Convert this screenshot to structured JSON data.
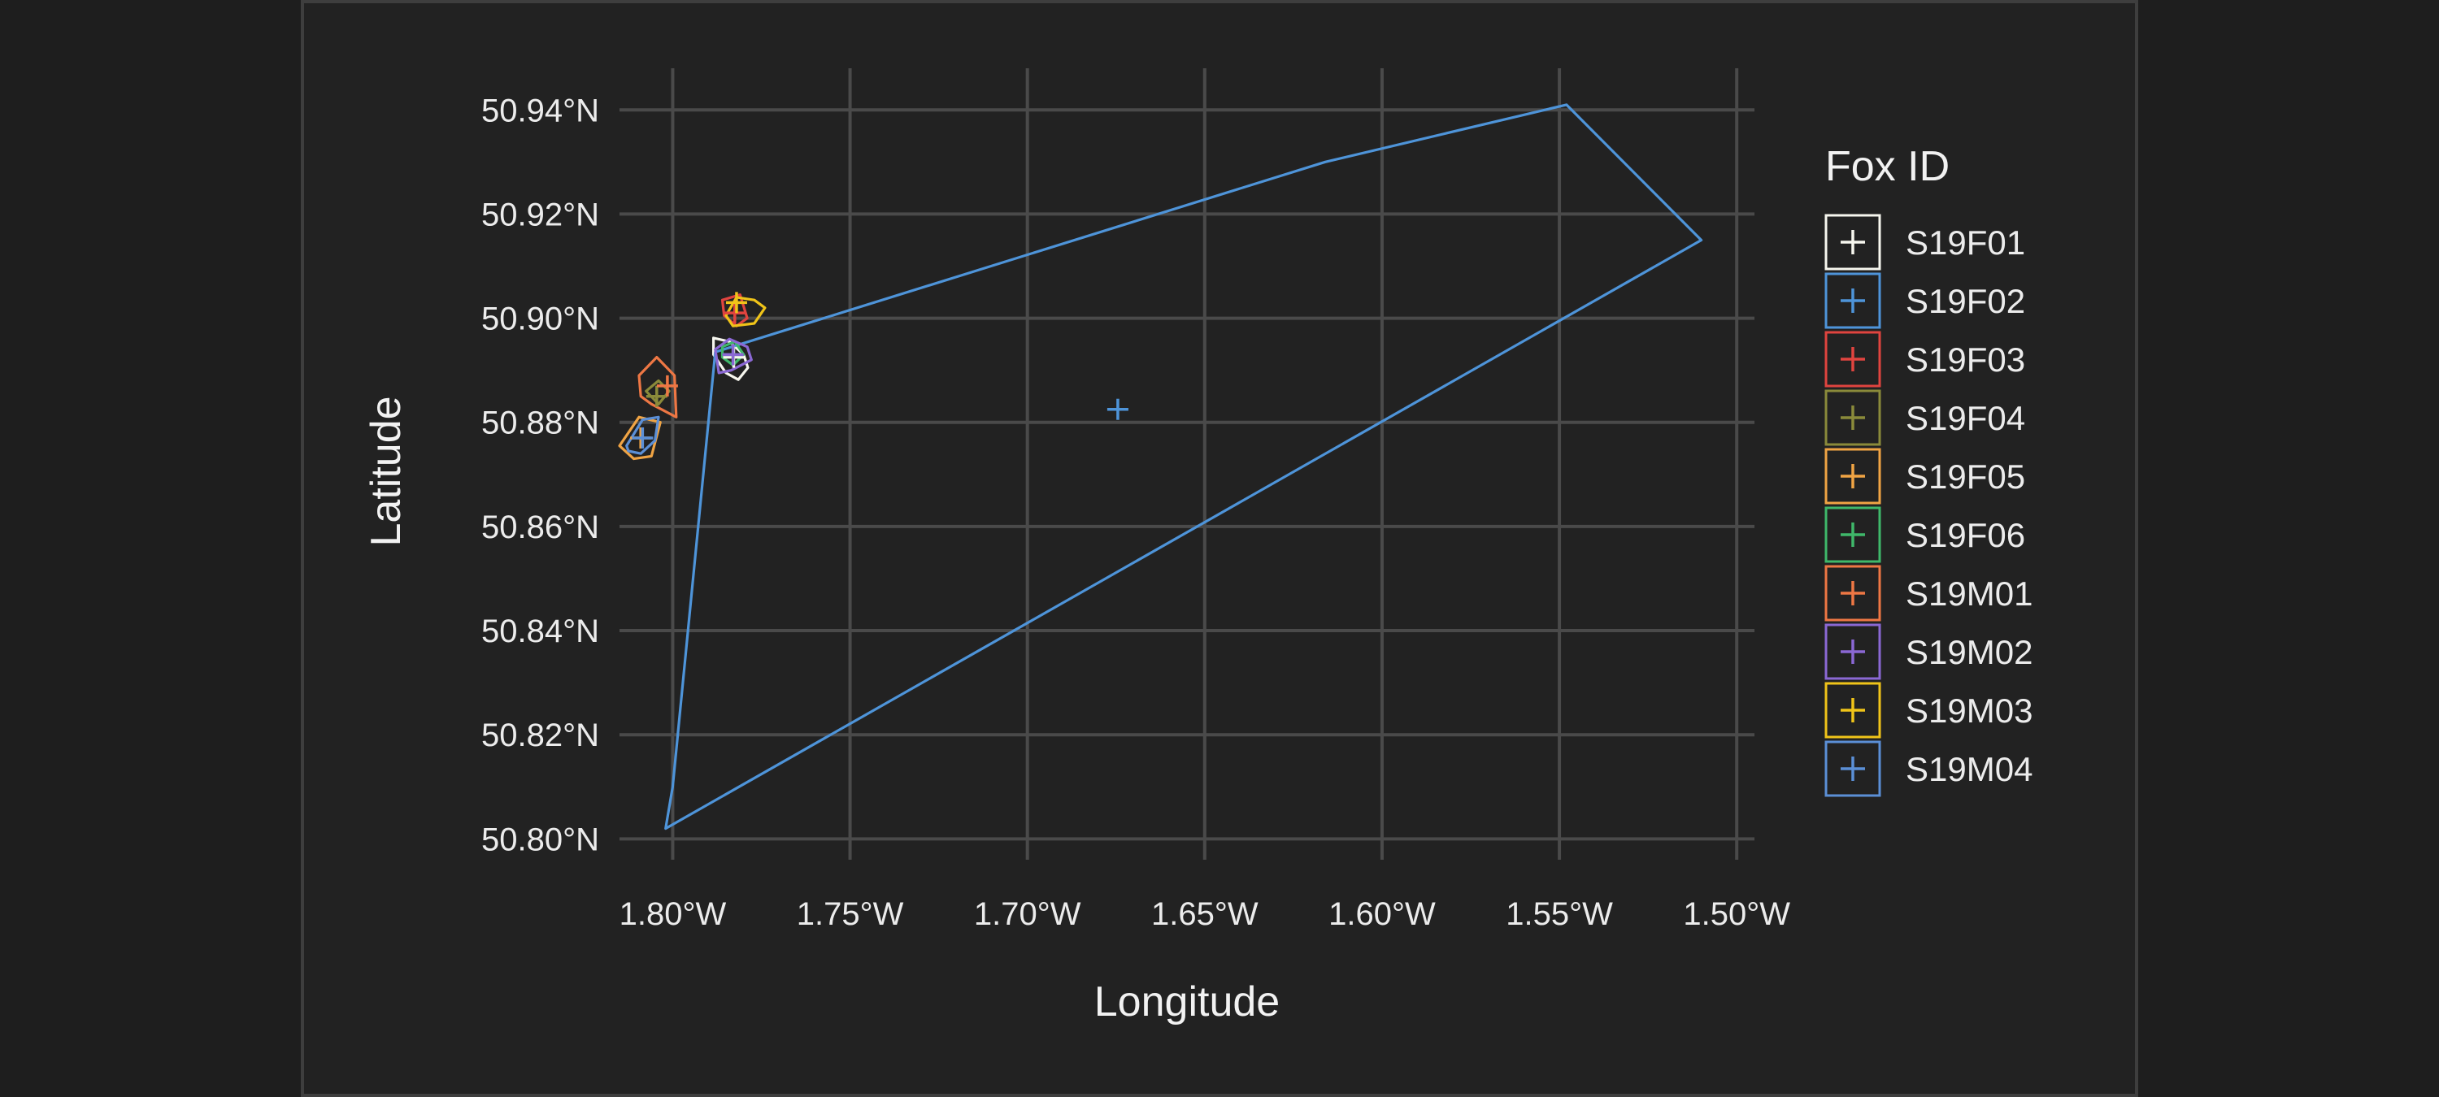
{
  "chart_data": {
    "type": "scatter",
    "title": "",
    "xlabel": "Longitude",
    "ylabel": "Latitude",
    "xlim": [
      -1.815,
      -1.495
    ],
    "ylim": [
      50.796,
      50.948
    ],
    "x_ticks": [
      -1.8,
      -1.75,
      -1.7,
      -1.65,
      -1.6,
      -1.55,
      -1.5
    ],
    "x_tick_labels": [
      "1.80°W",
      "1.75°W",
      "1.70°W",
      "1.65°W",
      "1.60°W",
      "1.55°W",
      "1.50°W"
    ],
    "y_ticks": [
      50.8,
      50.82,
      50.84,
      50.86,
      50.88,
      50.9,
      50.92,
      50.94
    ],
    "y_tick_labels": [
      "50.80°N",
      "50.82°N",
      "50.84°N",
      "50.86°N",
      "50.88°N",
      "50.90°N",
      "50.92°N",
      "50.94°N"
    ],
    "grid": true,
    "background": "#222222",
    "legend": {
      "title": "Fox ID",
      "placement": "right"
    },
    "series": [
      {
        "name": "S19F01",
        "color": "#f7f7ef",
        "centroid": [
          -1.7828,
          50.8925
        ],
        "polygon": [
          [
            -1.7885,
            50.8962
          ],
          [
            -1.784,
            50.8955
          ],
          [
            -1.78,
            50.893
          ],
          [
            -1.7788,
            50.8905
          ],
          [
            -1.7815,
            50.8882
          ],
          [
            -1.785,
            50.8895
          ],
          [
            -1.7885,
            50.893
          ]
        ]
      },
      {
        "name": "S19F02",
        "color": "#4e94d9",
        "centroid": [
          -1.6745,
          50.8825
        ],
        "polygon": [
          [
            -1.788,
            50.8935
          ],
          [
            -1.616,
            50.93
          ],
          [
            -1.548,
            50.941
          ],
          [
            -1.51,
            50.915
          ],
          [
            -1.802,
            50.802
          ],
          [
            -1.8,
            50.81
          ]
        ]
      },
      {
        "name": "S19F03",
        "color": "#e0443f",
        "centroid": [
          -1.7825,
          50.901
        ],
        "polygon": [
          [
            -1.786,
            50.9035
          ],
          [
            -1.781,
            50.9045
          ],
          [
            -1.779,
            50.9
          ],
          [
            -1.782,
            50.8985
          ],
          [
            -1.7855,
            50.9005
          ]
        ]
      },
      {
        "name": "S19F04",
        "color": "#8a8a3a",
        "centroid": [
          -1.8045,
          50.885
        ],
        "polygon": [
          [
            -1.8075,
            50.886
          ],
          [
            -1.804,
            50.888
          ],
          [
            -1.801,
            50.886
          ],
          [
            -1.804,
            50.8835
          ]
        ]
      },
      {
        "name": "S19F05",
        "color": "#f0a444",
        "centroid": [
          -1.809,
          50.877
        ],
        "polygon": [
          [
            -1.815,
            50.8755
          ],
          [
            -1.8095,
            50.881
          ],
          [
            -1.8035,
            50.88
          ],
          [
            -1.806,
            50.8735
          ],
          [
            -1.811,
            50.873
          ]
        ]
      },
      {
        "name": "S19F06",
        "color": "#3fb86a",
        "centroid": [
          -1.783,
          50.893
        ],
        "polygon": [
          [
            -1.786,
            50.8945
          ],
          [
            -1.7825,
            50.8955
          ],
          [
            -1.78,
            50.893
          ],
          [
            -1.783,
            50.891
          ],
          [
            -1.786,
            50.8925
          ]
        ]
      },
      {
        "name": "S19M01",
        "color": "#ee7744",
        "centroid": [
          -1.8015,
          50.887
        ],
        "polygon": [
          [
            -1.8095,
            50.889
          ],
          [
            -1.8045,
            50.8925
          ],
          [
            -1.7995,
            50.889
          ],
          [
            -1.799,
            50.881
          ],
          [
            -1.806,
            50.8835
          ],
          [
            -1.809,
            50.885
          ]
        ]
      },
      {
        "name": "S19M02",
        "color": "#8b68d4",
        "centroid": [
          -1.783,
          50.893
        ],
        "polygon": [
          [
            -1.788,
            50.894
          ],
          [
            -1.784,
            50.896
          ],
          [
            -1.779,
            50.8945
          ],
          [
            -1.7778,
            50.892
          ],
          [
            -1.7835,
            50.89
          ],
          [
            -1.787,
            50.8895
          ]
        ]
      },
      {
        "name": "S19M03",
        "color": "#f0c419",
        "centroid": [
          -1.782,
          50.903
        ],
        "polygon": [
          [
            -1.785,
            50.9005
          ],
          [
            -1.782,
            50.904
          ],
          [
            -1.777,
            50.9035
          ],
          [
            -1.774,
            50.902
          ],
          [
            -1.777,
            50.899
          ],
          [
            -1.783,
            50.8985
          ]
        ]
      },
      {
        "name": "S19M04",
        "color": "#5b8fd6",
        "centroid": [
          -1.8085,
          50.877
        ],
        "polygon": [
          [
            -1.813,
            50.8755
          ],
          [
            -1.8085,
            50.8805
          ],
          [
            -1.804,
            50.881
          ],
          [
            -1.805,
            50.8765
          ],
          [
            -1.809,
            50.874
          ],
          [
            -1.8125,
            50.8745
          ]
        ]
      }
    ]
  }
}
